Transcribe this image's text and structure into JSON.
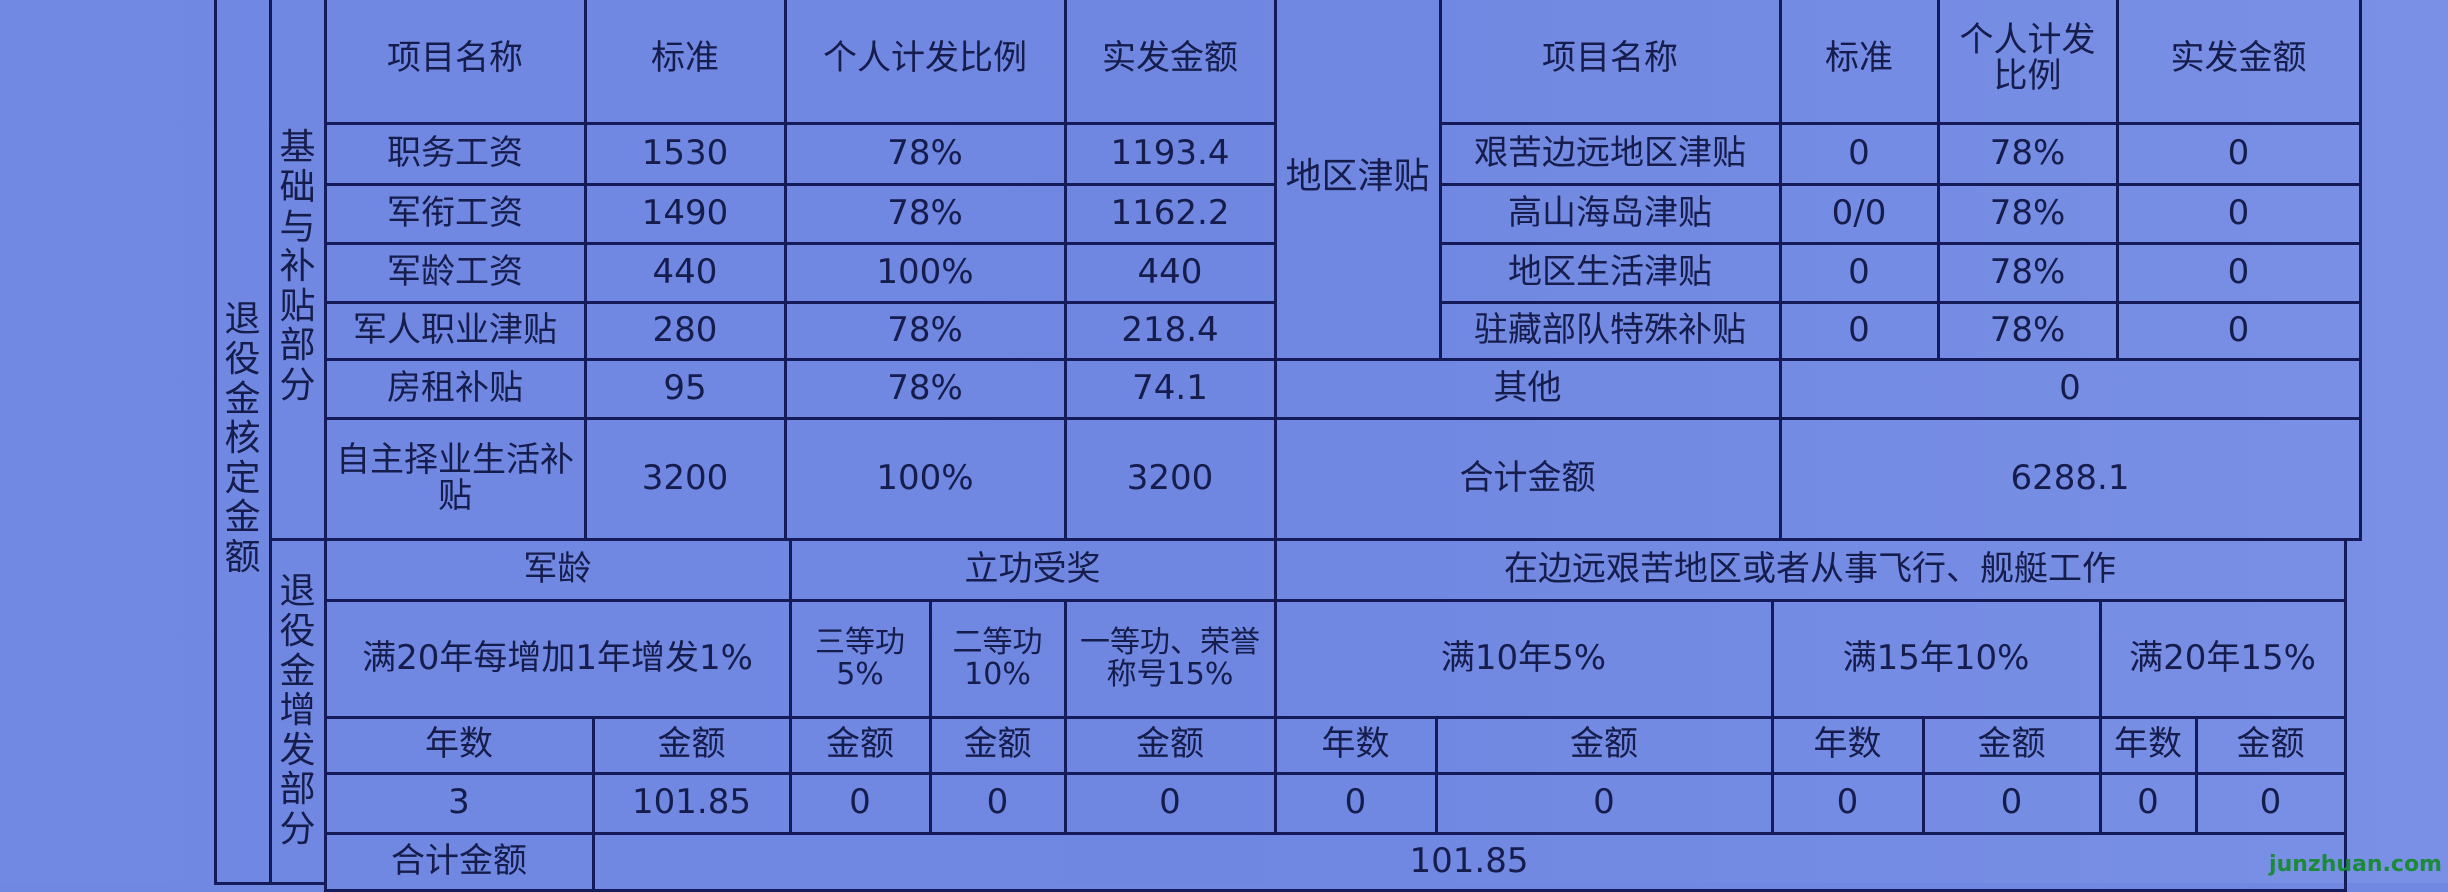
{
  "watermark": "junzhuan.com",
  "section_label": "退役金核定金额",
  "basic": {
    "label": "基础与补贴部分",
    "headers": [
      "项目名称",
      "标准",
      "个人计发比例",
      "实发金额"
    ],
    "rows": [
      [
        "职务工资",
        "1530",
        "78%",
        "1193.4"
      ],
      [
        "军衔工资",
        "1490",
        "78%",
        "1162.2"
      ],
      [
        "军龄工资",
        "440",
        "100%",
        "440"
      ],
      [
        "军人职业津贴",
        "280",
        "78%",
        "218.4"
      ],
      [
        "房租补贴",
        "95",
        "78%",
        "74.1"
      ],
      [
        "自主择业生活补贴",
        "3200",
        "100%",
        "3200"
      ]
    ]
  },
  "regional": {
    "label": "地区津贴",
    "headers": [
      "项目名称",
      "标准",
      "个人计发比例",
      "实发金额"
    ],
    "rows": [
      [
        "艰苦边远地区津贴",
        "0",
        "78%",
        "0"
      ],
      [
        "高山海岛津贴",
        "0/0",
        "78%",
        "0"
      ],
      [
        "地区生活津贴",
        "0",
        "78%",
        "0"
      ],
      [
        "驻藏部队特殊补贴",
        "0",
        "78%",
        "0"
      ]
    ]
  },
  "other": {
    "label": "其他",
    "value": "0"
  },
  "total": {
    "label": "合计金额",
    "value": "6288.1"
  },
  "increase": {
    "label": "退役金增发部分",
    "groups": [
      "军龄",
      "立功受奖",
      "在边远艰苦地区或者从事飞行、舰艇工作"
    ],
    "rules": [
      "满20年每增加1年增发1%",
      "三等功5%",
      "二等功10%",
      "一等功、荣誉称号15%",
      "满10年5%",
      "满15年10%",
      "满20年15%"
    ],
    "columns": [
      "年数",
      "金额",
      "金额",
      "金额",
      "金额",
      "年数",
      "金额",
      "年数",
      "金额",
      "年数",
      "金额"
    ],
    "values": [
      "3",
      "101.85",
      "0",
      "0",
      "0",
      "0",
      "0",
      "0",
      "0",
      "0",
      "0"
    ],
    "total_label": "合计金额",
    "total_value": "101.85"
  }
}
